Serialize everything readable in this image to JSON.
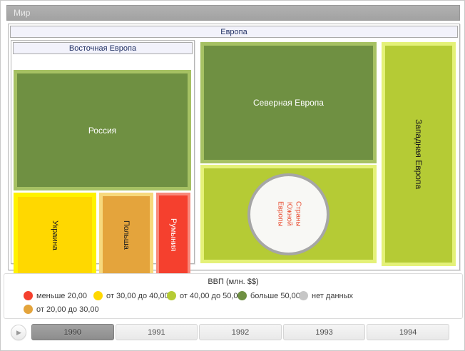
{
  "window_bar": {
    "title": "Мир"
  },
  "chart_data": {
    "type": "treemap",
    "title": "ВВП (млн. $$)",
    "root": "Мир",
    "nodes": [
      {
        "name": "Европа",
        "parent": "Мир",
        "kind": "group"
      },
      {
        "name": "Восточная Европа",
        "parent": "Европа",
        "kind": "group"
      },
      {
        "name": "Россия",
        "parent": "Восточная Европа",
        "category": "больше 50,00"
      },
      {
        "name": "Украина",
        "parent": "Восточная Европа",
        "category": "от 30,00 до 40,00"
      },
      {
        "name": "Польша",
        "parent": "Восточная Европа",
        "category": "от 20,00 до 30,00"
      },
      {
        "name": "Румыния",
        "parent": "Восточная Европа",
        "category": "меньше 20,00"
      },
      {
        "name": "Северная Европа",
        "parent": "Европа",
        "category": "больше 50,00"
      },
      {
        "name": "Страны Южной Европы",
        "parent": "Европа",
        "category": "нет данных",
        "shape": "circle",
        "label_lines": [
          "Страны",
          "Южной",
          "Европы"
        ]
      },
      {
        "name": "Западная Европа",
        "parent": "Европа",
        "category": "от 40,00 до 50,00"
      }
    ],
    "legend": {
      "title": "ВВП (млн. $$)",
      "items": [
        {
          "label": "меньше 20,00",
          "color": "#f5402e"
        },
        {
          "label": "от 20,00 до 30,00",
          "color": "#e4a43c"
        },
        {
          "label": "от 30,00 до 40,00",
          "color": "#ffd800"
        },
        {
          "label": "от 40,00 до 50,00",
          "color": "#b5cb35"
        },
        {
          "label": "больше 50,00",
          "color": "#6f9042"
        },
        {
          "label": "нет данных",
          "color": "#c6c6c6"
        }
      ]
    },
    "timeline": {
      "years": [
        "1990",
        "1991",
        "1992",
        "1993",
        "1994"
      ],
      "selected_year": "1990"
    }
  }
}
